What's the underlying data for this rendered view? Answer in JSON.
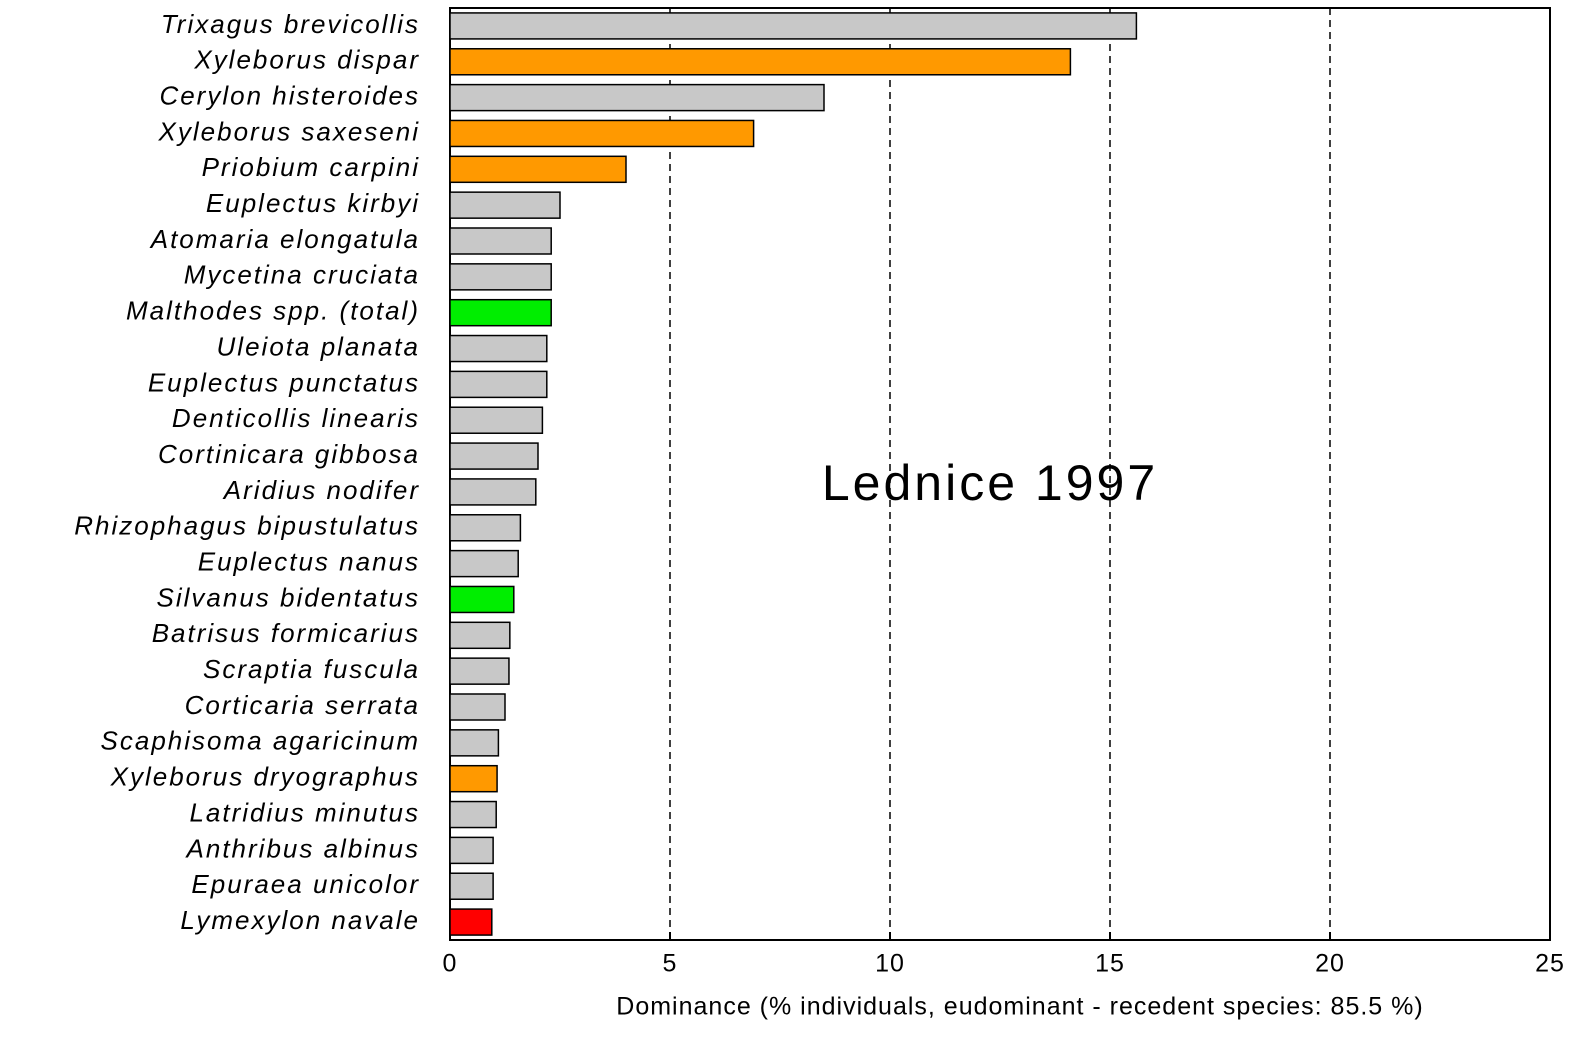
{
  "chart_data": {
    "type": "barh",
    "annotation": "Lednice 1997",
    "xlabel": "Dominance (% individuals, eudominant - recedent species: 85.5 %)",
    "categories": [
      "Trixagus brevicollis",
      "Xyleborus dispar",
      "Cerylon histeroides",
      "Xyleborus saxeseni",
      "Priobium carpini",
      "Euplectus kirbyi",
      "Atomaria elongatula",
      "Mycetina cruciata",
      "Malthodes spp. (total)",
      "Uleiota planata",
      "Euplectus punctatus",
      "Denticollis linearis",
      "Cortinicara gibbosa",
      "Aridius nodifer",
      "Rhizophagus bipustulatus",
      "Euplectus nanus",
      "Silvanus bidentatus",
      "Batrisus formicarius",
      "Scraptia fuscula",
      "Corticaria serrata",
      "Scaphisoma agaricinum",
      "Xyleborus dryographus",
      "Latridius minutus",
      "Anthribus albinus",
      "Epuraea unicolor",
      "Lymexylon navale"
    ],
    "values": [
      15.6,
      14.1,
      8.5,
      6.9,
      4.0,
      2.5,
      2.3,
      2.3,
      2.3,
      2.2,
      2.2,
      2.1,
      2.0,
      1.95,
      1.6,
      1.55,
      1.45,
      1.36,
      1.34,
      1.25,
      1.1,
      1.07,
      1.05,
      0.98,
      0.98,
      0.95
    ],
    "colors": [
      "#c8c8c8",
      "#ff9900",
      "#c8c8c8",
      "#ff9900",
      "#ff9900",
      "#c8c8c8",
      "#c8c8c8",
      "#c8c8c8",
      "#00ee00",
      "#c8c8c8",
      "#c8c8c8",
      "#c8c8c8",
      "#c8c8c8",
      "#c8c8c8",
      "#c8c8c8",
      "#c8c8c8",
      "#00ee00",
      "#c8c8c8",
      "#c8c8c8",
      "#c8c8c8",
      "#c8c8c8",
      "#ff9900",
      "#c8c8c8",
      "#c8c8c8",
      "#c8c8c8",
      "#ff0000"
    ],
    "xlim": [
      0,
      25
    ],
    "xticks": [
      0,
      5,
      10,
      15,
      20,
      25
    ],
    "grid": true
  }
}
